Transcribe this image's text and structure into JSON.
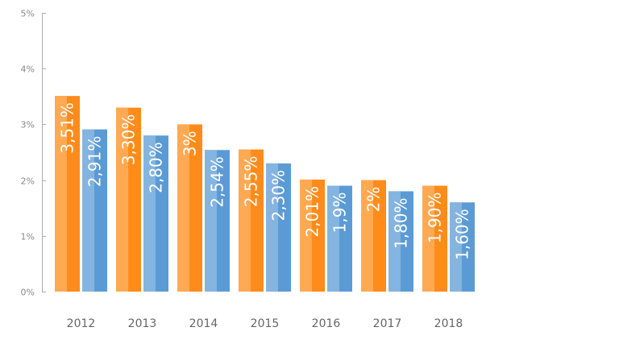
{
  "chart_data": {
    "type": "bar",
    "title": "",
    "xlabel": "",
    "ylabel": "",
    "categories": [
      "2012",
      "2013",
      "2014",
      "2015",
      "2016",
      "2017",
      "2018"
    ],
    "ylim": [
      0,
      5
    ],
    "y_ticks": [
      {
        "value": 0,
        "label": "0%"
      },
      {
        "value": 1,
        "label": "1%"
      },
      {
        "value": 2,
        "label": "2%"
      },
      {
        "value": 3,
        "label": "3%"
      },
      {
        "value": 4,
        "label": "4%"
      },
      {
        "value": 5,
        "label": "5%"
      }
    ],
    "grid": false,
    "legend": "none",
    "series": [
      {
        "color": "#ff8c1a",
        "values": [
          3.51,
          3.3,
          3.0,
          2.55,
          2.01,
          2.0,
          1.9
        ],
        "labels": [
          "3,51%",
          "3,30%",
          "3%",
          "2,55%",
          "2,01%",
          "2%",
          "1,90%"
        ]
      },
      {
        "color": "#5b9bd5",
        "values": [
          2.91,
          2.8,
          2.54,
          2.3,
          1.9,
          1.8,
          1.6
        ],
        "labels": [
          "2,91%",
          "2,80%",
          "2,54%",
          "2,30%",
          "1,9%",
          "1,80%",
          "1,60%"
        ]
      }
    ]
  }
}
